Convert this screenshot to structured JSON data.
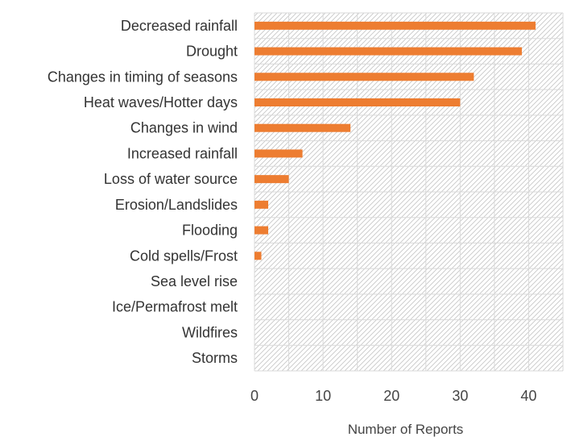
{
  "chart_data": {
    "type": "bar",
    "orientation": "horizontal",
    "categories": [
      "Decreased rainfall",
      "Drought",
      "Changes in timing of seasons",
      "Heat waves/Hotter days",
      "Changes in wind",
      "Increased rainfall",
      "Loss of water source",
      "Erosion/Landslides",
      "Flooding",
      "Cold spells/Frost",
      "Sea level rise",
      "Ice/Permafrost melt",
      "Wildfires",
      "Storms"
    ],
    "values": [
      41,
      39,
      32,
      30,
      14,
      7,
      5,
      2,
      2,
      1,
      0,
      0,
      0,
      0
    ],
    "title": "",
    "xlabel": "Number of Reports",
    "ylabel": "",
    "xlim": [
      0,
      45
    ],
    "xticks": [
      0,
      10,
      20,
      30,
      40
    ],
    "grid": true,
    "plot_background": "diagonal-hatch",
    "colors": {
      "bar": "#ED7D31",
      "grid": "#D9D9D9",
      "hatch": "#C8C8C8",
      "text": "#333333"
    }
  }
}
